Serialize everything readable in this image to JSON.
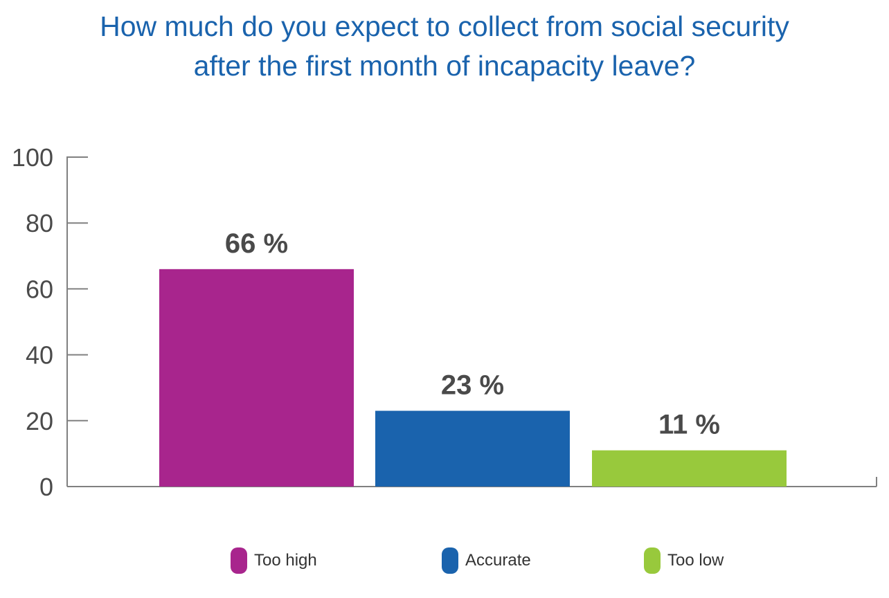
{
  "title": {
    "line1": "How much do you expect to collect from social security",
    "line2": "after the first month of incapacity leave?"
  },
  "colors": {
    "title": "#1a63ad",
    "axis": "#808080",
    "text": "#4a4a4a"
  },
  "chart_data": {
    "type": "bar",
    "categories": [
      "Too high",
      "Accurate",
      "Too low"
    ],
    "values": [
      66,
      23,
      11
    ],
    "value_labels": [
      "66 %",
      "23 %",
      "11 %"
    ],
    "colors": [
      "#a8258d",
      "#1a63ad",
      "#98c93c"
    ],
    "ylim": [
      0,
      100
    ],
    "yticks": [
      0,
      20,
      40,
      60,
      80,
      100
    ],
    "xlabel": "",
    "ylabel": "",
    "grid": false,
    "legend_position": "bottom"
  },
  "legend": {
    "items": [
      {
        "label": "Too high",
        "color": "#a8258d"
      },
      {
        "label": "Accurate",
        "color": "#1a63ad"
      },
      {
        "label": "Too low",
        "color": "#98c93c"
      }
    ]
  }
}
